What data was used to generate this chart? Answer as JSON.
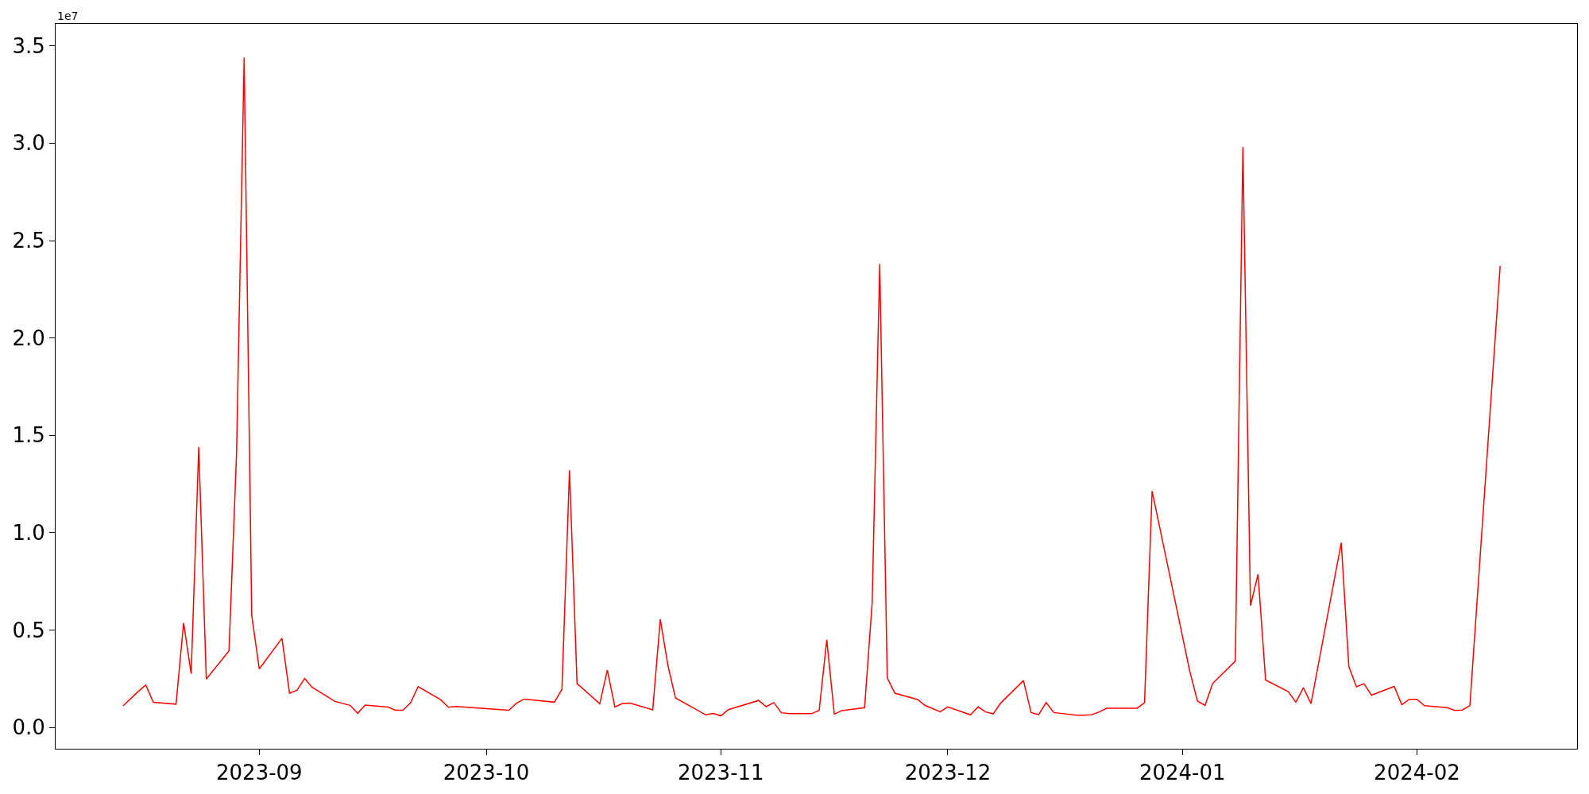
{
  "chart_data": {
    "type": "line",
    "x": [
      "2023-08-14",
      "2023-08-16",
      "2023-08-17",
      "2023-08-18",
      "2023-08-21",
      "2023-08-22",
      "2023-08-23",
      "2023-08-24",
      "2023-08-25",
      "2023-08-28",
      "2023-08-29",
      "2023-08-30",
      "2023-08-31",
      "2023-09-01",
      "2023-09-04",
      "2023-09-05",
      "2023-09-06",
      "2023-09-07",
      "2023-09-08",
      "2023-09-11",
      "2023-09-13",
      "2023-09-14",
      "2023-09-15",
      "2023-09-18",
      "2023-09-19",
      "2023-09-20",
      "2023-09-21",
      "2023-09-22",
      "2023-09-25",
      "2023-09-26",
      "2023-09-27",
      "2023-10-04",
      "2023-10-05",
      "2023-10-06",
      "2023-10-10",
      "2023-10-11",
      "2023-10-12",
      "2023-10-13",
      "2023-10-16",
      "2023-10-17",
      "2023-10-18",
      "2023-10-19",
      "2023-10-20",
      "2023-10-23",
      "2023-10-24",
      "2023-10-25",
      "2023-10-26",
      "2023-10-30",
      "2023-10-31",
      "2023-11-01",
      "2023-11-02",
      "2023-11-06",
      "2023-11-07",
      "2023-11-08",
      "2023-11-09",
      "2023-11-10",
      "2023-11-13",
      "2023-11-14",
      "2023-11-15",
      "2023-11-16",
      "2023-11-17",
      "2023-11-20",
      "2023-11-21",
      "2023-11-22",
      "2023-11-23",
      "2023-11-24",
      "2023-11-27",
      "2023-11-28",
      "2023-11-30",
      "2023-12-01",
      "2023-12-04",
      "2023-12-05",
      "2023-12-06",
      "2023-12-07",
      "2023-12-08",
      "2023-12-11",
      "2023-12-12",
      "2023-12-13",
      "2023-12-14",
      "2023-12-15",
      "2023-12-18",
      "2023-12-19",
      "2023-12-20",
      "2023-12-21",
      "2023-12-22",
      "2023-12-26",
      "2023-12-27",
      "2023-12-28",
      "2024-01-02",
      "2024-01-03",
      "2024-01-04",
      "2024-01-05",
      "2024-01-08",
      "2024-01-09",
      "2024-01-10",
      "2024-01-11",
      "2024-01-12",
      "2024-01-15",
      "2024-01-16",
      "2024-01-17",
      "2024-01-18",
      "2024-01-22",
      "2024-01-23",
      "2024-01-24",
      "2024-01-25",
      "2024-01-26",
      "2024-01-29",
      "2024-01-30",
      "2024-01-31",
      "2024-02-01",
      "2024-02-02",
      "2024-02-05",
      "2024-02-06",
      "2024-02-07",
      "2024-02-08",
      "2024-02-12"
    ],
    "series": [
      {
        "color": "#ff0000",
        "values": [
          0.111,
          0.185,
          0.218,
          0.129,
          0.12,
          0.537,
          0.276,
          1.44,
          0.249,
          0.394,
          1.41,
          3.44,
          0.576,
          0.301,
          0.458,
          0.176,
          0.192,
          0.252,
          0.206,
          0.134,
          0.114,
          0.073,
          0.115,
          0.105,
          0.089,
          0.089,
          0.127,
          0.21,
          0.142,
          0.104,
          0.108,
          0.089,
          0.125,
          0.146,
          0.13,
          0.196,
          1.32,
          0.226,
          0.122,
          0.295,
          0.105,
          0.123,
          0.125,
          0.091,
          0.556,
          0.321,
          0.152,
          0.065,
          0.072,
          0.06,
          0.092,
          0.139,
          0.107,
          0.128,
          0.076,
          0.071,
          0.071,
          0.088,
          0.45,
          0.069,
          0.087,
          0.102,
          0.64,
          2.38,
          0.255,
          0.176,
          0.144,
          0.113,
          0.081,
          0.106,
          0.065,
          0.106,
          0.08,
          0.07,
          0.126,
          0.241,
          0.077,
          0.066,
          0.128,
          0.077,
          0.063,
          0.063,
          0.065,
          0.08,
          0.099,
          0.099,
          0.127,
          1.214,
          0.285,
          0.136,
          0.114,
          0.226,
          0.341,
          2.98,
          0.626,
          0.787,
          0.244,
          0.184,
          0.13,
          0.204,
          0.123,
          0.949,
          0.314,
          0.209,
          0.225,
          0.166,
          0.211,
          0.117,
          0.145,
          0.145,
          0.112,
          0.102,
          0.088,
          0.09,
          0.113,
          2.37
        ]
      }
    ],
    "xlim": [
      "2023-08-05T02:00",
      "2024-02-22T04:00"
    ],
    "xticks": [
      {
        "value": "2023-09-01",
        "label": "2023-09"
      },
      {
        "value": "2023-10-01",
        "label": "2023-10"
      },
      {
        "value": "2023-11-01",
        "label": "2023-11"
      },
      {
        "value": "2023-12-01",
        "label": "2023-12"
      },
      {
        "value": "2024-01-01",
        "label": "2024-01"
      },
      {
        "value": "2024-02-01",
        "label": "2024-02"
      }
    ],
    "ylim": [
      -0.109,
      3.613
    ],
    "yticks": [
      {
        "value": 0,
        "label": "0.0"
      },
      0.5,
      {
        "value": 1,
        "label": "1.0"
      },
      1.5,
      {
        "value": 2,
        "label": "2.0"
      },
      2.5,
      {
        "value": 3,
        "label": "3.0"
      },
      3.5
    ],
    "annotations": [
      "1e7"
    ],
    "marker": "none",
    "line_style": "solid"
  }
}
